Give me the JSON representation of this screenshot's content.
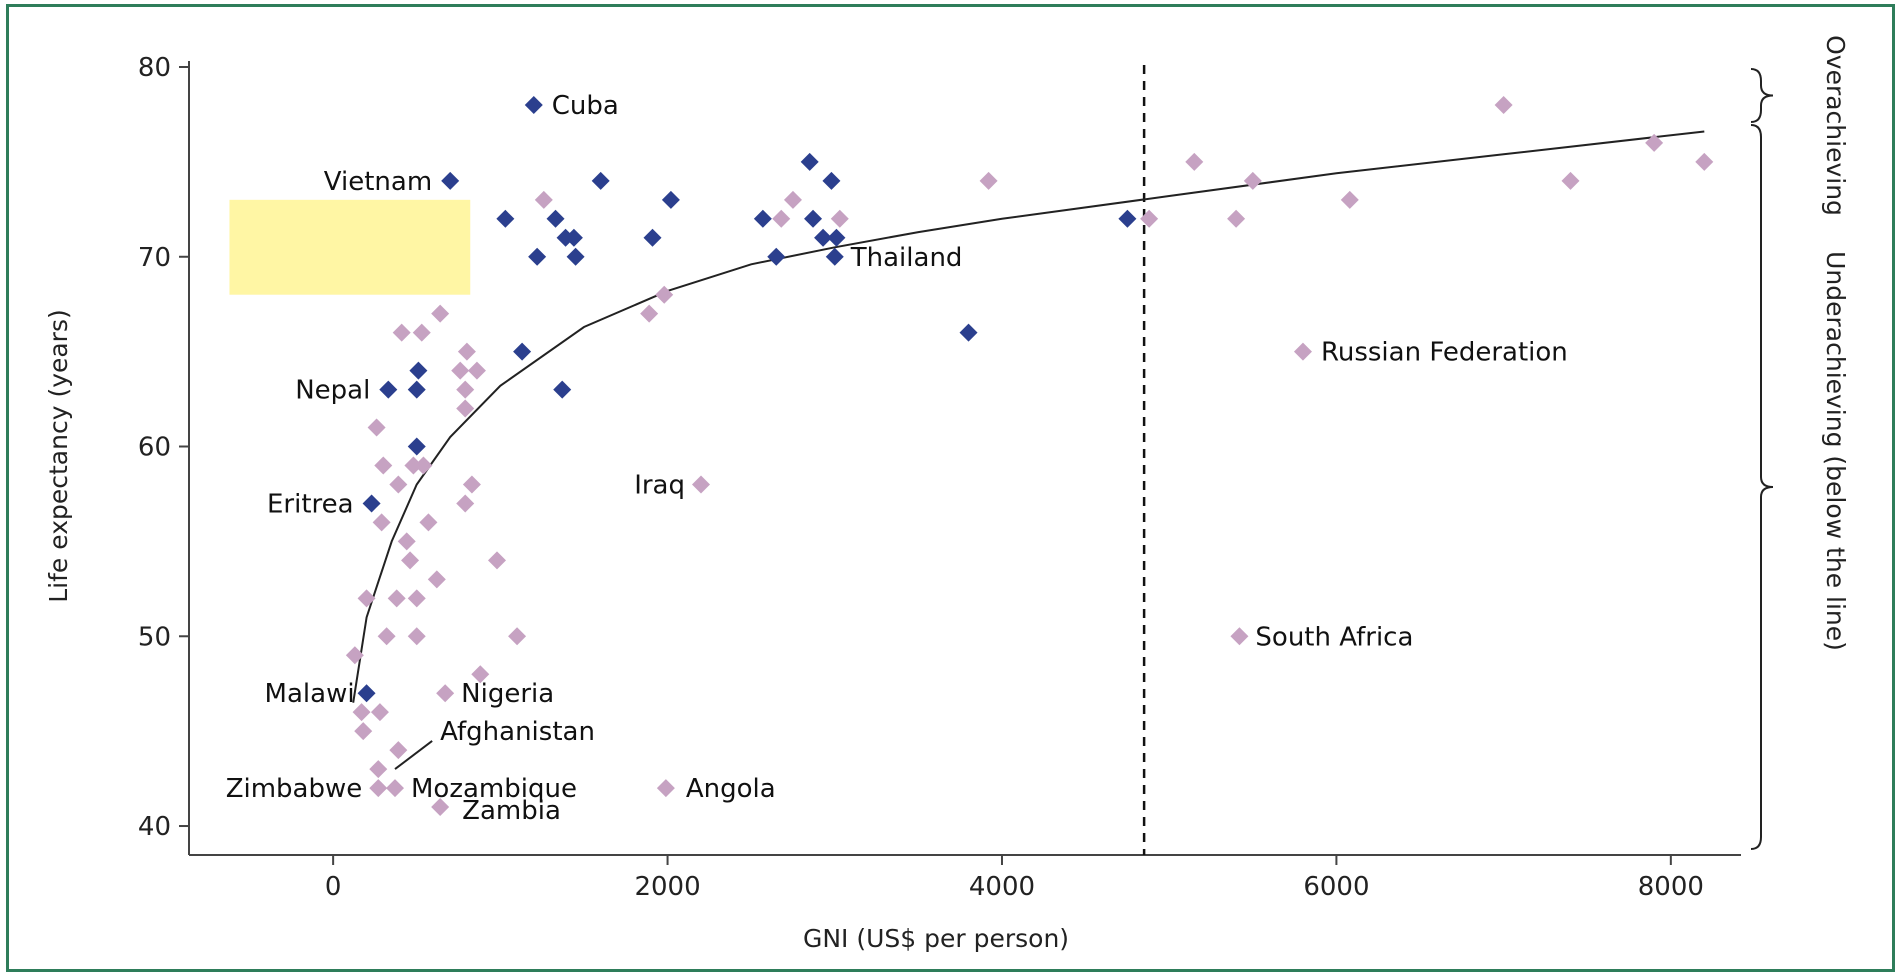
{
  "chart_data": {
    "type": "scatter",
    "title": "",
    "xlabel": "GNI (US$ per person)",
    "ylabel": "Life expectancy (years)",
    "xlim": [
      -850,
      8300
    ],
    "ylim": [
      39,
      80
    ],
    "xticks": [
      0,
      2000,
      4000,
      6000,
      8000
    ],
    "yticks": [
      40,
      50,
      60,
      70,
      80
    ],
    "xtick_labels": [
      "0",
      "2000",
      "4000",
      "6000",
      "8000"
    ],
    "ytick_labels": [
      "40",
      "50",
      "60",
      "70",
      "80"
    ],
    "threshold_x": 4850,
    "colors": {
      "overachieving": "#2b3f8e",
      "underachieving": "#c6a2c2",
      "highlight": "#fff59a"
    },
    "bracket_labels": {
      "over": "Overachieving",
      "under": "Underachieving (below the line)"
    },
    "trend_curve": {
      "x": [
        120,
        200,
        350,
        500,
        700,
        1000,
        1500,
        2000,
        2500,
        3000,
        3500,
        4000,
        5000,
        6000,
        7000,
        8200
      ],
      "y": [
        46.5,
        51,
        55,
        58,
        60.5,
        63.2,
        66.3,
        68.2,
        69.6,
        70.5,
        71.3,
        72.0,
        73.2,
        74.4,
        75.4,
        76.6
      ]
    },
    "series": [
      {
        "name": "Overachieving",
        "points": [
          [
            1200,
            78
          ],
          [
            700,
            74
          ],
          [
            1600,
            74
          ],
          [
            2850,
            75
          ],
          [
            2980,
            74
          ],
          [
            2020,
            73
          ],
          [
            1030,
            72
          ],
          [
            1330,
            72
          ],
          [
            2570,
            72
          ],
          [
            2870,
            72
          ],
          [
            4750,
            72
          ],
          [
            1390,
            71
          ],
          [
            1440,
            71
          ],
          [
            1910,
            71
          ],
          [
            2930,
            71
          ],
          [
            3010,
            71
          ],
          [
            1220,
            70
          ],
          [
            1450,
            70
          ],
          [
            2650,
            70
          ],
          [
            3000,
            70
          ],
          [
            3800,
            66
          ],
          [
            1130,
            65
          ],
          [
            510,
            64
          ],
          [
            330,
            63
          ],
          [
            500,
            63
          ],
          [
            1370,
            63
          ],
          [
            500,
            60
          ],
          [
            230,
            57
          ],
          [
            200,
            47
          ]
        ]
      },
      {
        "name": "Underachieving",
        "points": [
          [
            7000,
            78
          ],
          [
            7900,
            76
          ],
          [
            5150,
            75
          ],
          [
            8200,
            75
          ],
          [
            3920,
            74
          ],
          [
            5500,
            74
          ],
          [
            7400,
            74
          ],
          [
            1260,
            73
          ],
          [
            2750,
            73
          ],
          [
            6080,
            73
          ],
          [
            2680,
            72
          ],
          [
            3030,
            72
          ],
          [
            4880,
            72
          ],
          [
            5400,
            72
          ],
          [
            1980,
            68
          ],
          [
            1890,
            67
          ],
          [
            640,
            67
          ],
          [
            410,
            66
          ],
          [
            530,
            66
          ],
          [
            800,
            65
          ],
          [
            760,
            64
          ],
          [
            860,
            64
          ],
          [
            790,
            63
          ],
          [
            790,
            62
          ],
          [
            260,
            61
          ],
          [
            300,
            59
          ],
          [
            480,
            59
          ],
          [
            540,
            59
          ],
          [
            390,
            58
          ],
          [
            830,
            58
          ],
          [
            790,
            57
          ],
          [
            290,
            56
          ],
          [
            570,
            56
          ],
          [
            440,
            55
          ],
          [
            460,
            54
          ],
          [
            980,
            54
          ],
          [
            620,
            53
          ],
          [
            200,
            52
          ],
          [
            380,
            52
          ],
          [
            500,
            52
          ],
          [
            320,
            50
          ],
          [
            500,
            50
          ],
          [
            1100,
            50
          ],
          [
            130,
            49
          ],
          [
            880,
            48
          ],
          [
            670,
            47
          ],
          [
            170,
            46
          ],
          [
            280,
            46
          ],
          [
            180,
            45
          ],
          [
            390,
            44
          ],
          [
            270,
            43
          ],
          [
            270,
            42
          ],
          [
            370,
            42
          ],
          [
            1990,
            42
          ],
          [
            640,
            41
          ],
          [
            5800,
            65
          ],
          [
            2200,
            58
          ],
          [
            5420,
            50
          ]
        ]
      }
    ],
    "labels": [
      {
        "text": "Cuba",
        "x": 1200,
        "y": 78,
        "anchor": "start",
        "dx": 18,
        "dy": 9
      },
      {
        "text": "Vietnam",
        "x": 700,
        "y": 74,
        "anchor": "end",
        "dx": -18,
        "dy": 9
      },
      {
        "text": "Thailand",
        "x": 3000,
        "y": 70,
        "anchor": "start",
        "dx": 16,
        "dy": 9
      },
      {
        "text": "Nepal",
        "x": 330,
        "y": 63,
        "anchor": "end",
        "dx": -18,
        "dy": 9
      },
      {
        "text": "Eritrea",
        "x": 230,
        "y": 57,
        "anchor": "end",
        "dx": -18,
        "dy": 9
      },
      {
        "text": "Malawi",
        "x": 200,
        "y": 47,
        "anchor": "end",
        "dx": -12,
        "dy": 9
      },
      {
        "text": "Nigeria",
        "x": 670,
        "y": 47,
        "anchor": "start",
        "dx": 16,
        "dy": 9
      },
      {
        "text": "Afghanistan",
        "x": 640,
        "y": 45,
        "anchor": "start",
        "dx": 0,
        "dy": 9
      },
      {
        "text": "Zimbabwe",
        "x": 270,
        "y": 42,
        "anchor": "end",
        "dx": -16,
        "dy": 9
      },
      {
        "text": "Mozambique",
        "x": 370,
        "y": 42,
        "anchor": "start",
        "dx": 16,
        "dy": 9
      },
      {
        "text": "Angola",
        "x": 1990,
        "y": 42,
        "anchor": "start",
        "dx": 20,
        "dy": 9
      },
      {
        "text": "Zambia",
        "x": 640,
        "y": 41,
        "anchor": "start",
        "dx": 22,
        "dy": 12
      },
      {
        "text": "Russian Federation",
        "x": 5800,
        "y": 65,
        "anchor": "start",
        "dx": 18,
        "dy": 9
      },
      {
        "text": "Iraq",
        "x": 2200,
        "y": 58,
        "anchor": "end",
        "dx": -16,
        "dy": 9
      },
      {
        "text": "South Africa",
        "x": 5420,
        "y": 50,
        "anchor": "start",
        "dx": 16,
        "dy": 9
      }
    ],
    "leader_line": {
      "from": [
        370,
        43
      ],
      "to": [
        640,
        44.8
      ]
    },
    "highlight_box": {
      "x": [
        -620,
        820
      ],
      "y": [
        68,
        73
      ]
    }
  }
}
